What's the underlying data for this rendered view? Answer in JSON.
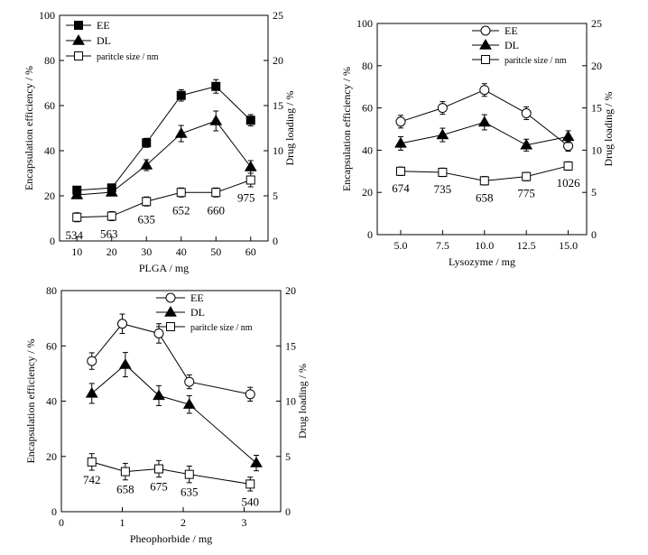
{
  "chart_data": [
    {
      "type": "line",
      "xlabel": "PLGA / mg",
      "ylabel": "Encapsulation efficiency / %",
      "y2label": "Drug loading / %",
      "x_ticks": [
        10,
        20,
        30,
        40,
        50,
        60
      ],
      "y_ticks": [
        0,
        20,
        40,
        60,
        80,
        100
      ],
      "y2_ticks": [
        0,
        5,
        10,
        15,
        20,
        25
      ],
      "xlim": [
        5,
        65
      ],
      "ylim": [
        0,
        100
      ],
      "y2lim": [
        0,
        25
      ],
      "legend_position": "top-left",
      "series": [
        {
          "name": "EE",
          "axis": "left",
          "marker": "square-filled",
          "x": [
            10,
            20,
            30,
            40,
            50,
            60
          ],
          "values": [
            22.5,
            23.5,
            43.5,
            64.5,
            68.5,
            53.5
          ],
          "err": [
            1.5,
            1.5,
            2,
            2.5,
            3,
            2.5
          ]
        },
        {
          "name": "DL",
          "axis": "right",
          "marker": "triangle-filled",
          "x": [
            10,
            20,
            30,
            40,
            50,
            60
          ],
          "values": [
            5.1,
            5.4,
            8.4,
            11.9,
            13.3,
            8.2
          ],
          "err": [
            0.4,
            0.4,
            0.6,
            0.9,
            1.1,
            0.7
          ]
        },
        {
          "name": "paritcle size / nm",
          "axis": "left",
          "marker": "square-open",
          "x": [
            10,
            20,
            30,
            40,
            50,
            60
          ],
          "values": [
            10.5,
            11,
            17.5,
            21.5,
            21.5,
            27
          ],
          "err": [
            2,
            2,
            2,
            2,
            2,
            3
          ]
        }
      ],
      "annotations": [
        "534",
        "563",
        "635",
        "652",
        "660",
        "975"
      ]
    },
    {
      "type": "line",
      "xlabel": "Lysozyme / mg",
      "ylabel": "Encapsulation efficiency / %",
      "y2label": "Drug loading / %",
      "x_ticks": [
        "5.0",
        "7.5",
        "10.0",
        "12.5",
        "15.0"
      ],
      "x_tick_values": [
        5,
        7.5,
        10,
        12.5,
        15
      ],
      "y_ticks": [
        0,
        20,
        40,
        60,
        80,
        100
      ],
      "y2_ticks": [
        0,
        5,
        10,
        15,
        20,
        25
      ],
      "xlim": [
        3.6,
        16.1
      ],
      "ylim": [
        0,
        100
      ],
      "y2lim": [
        0,
        25
      ],
      "legend_position": "top-right",
      "series": [
        {
          "name": "EE",
          "axis": "left",
          "marker": "circle-open",
          "x": [
            5,
            7.5,
            10,
            12.5,
            15
          ],
          "values": [
            53.5,
            60,
            68.5,
            57.5,
            42
          ],
          "err": [
            3,
            3,
            3,
            3,
            2.5
          ]
        },
        {
          "name": "DL",
          "axis": "right",
          "marker": "triangle-filled",
          "x": [
            5,
            7.5,
            10,
            12.5,
            15
          ],
          "values": [
            10.8,
            11.8,
            13.3,
            10.6,
            11.6
          ],
          "err": [
            0.8,
            0.8,
            0.9,
            0.7,
            0.7
          ]
        },
        {
          "name": "paritcle size / nm",
          "axis": "left",
          "marker": "square-open",
          "x": [
            5,
            7.5,
            10,
            12.5,
            15
          ],
          "values": [
            30,
            29.5,
            25.5,
            27.5,
            32.5
          ],
          "err": [
            2,
            2,
            2,
            2,
            2
          ]
        }
      ],
      "annotations": [
        "674",
        "735",
        "658",
        "775",
        "1026"
      ]
    },
    {
      "type": "line",
      "xlabel": "Pheophorbide / mg",
      "ylabel": "Encapsulation efficiency / %",
      "y2label": "Drug loading / %",
      "x_ticks": [
        0,
        1,
        2,
        3
      ],
      "y_ticks": [
        0,
        20,
        40,
        60,
        80
      ],
      "y2_ticks": [
        0,
        5,
        10,
        15,
        20
      ],
      "xlim": [
        0,
        3.6
      ],
      "ylim": [
        0,
        80
      ],
      "y2lim": [
        0,
        20
      ],
      "legend_position": "top-right",
      "series": [
        {
          "name": "EE",
          "axis": "left",
          "marker": "circle-open",
          "x": [
            0.5,
            1.0,
            1.6,
            2.1,
            3.1
          ],
          "values": [
            54.5,
            68,
            64.5,
            47,
            42.5
          ],
          "err": [
            3,
            3.5,
            3.5,
            2.5,
            2.5
          ]
        },
        {
          "name": "DL",
          "axis": "right",
          "marker": "triangle-filled",
          "x": [
            0.5,
            1.05,
            1.6,
            2.1,
            3.2
          ],
          "values": [
            10.7,
            13.3,
            10.5,
            9.7,
            4.4
          ],
          "err": [
            0.9,
            1.1,
            0.9,
            0.8,
            0.7
          ]
        },
        {
          "name": "paritcle size / nm",
          "axis": "left",
          "marker": "square-open",
          "x": [
            0.5,
            1.05,
            1.6,
            2.1,
            3.1
          ],
          "values": [
            18,
            14.5,
            15.5,
            13.5,
            10
          ],
          "err": [
            3,
            3,
            3,
            3,
            2.5
          ]
        }
      ],
      "annotations": [
        "742",
        "658",
        "675",
        "635",
        "540"
      ]
    }
  ]
}
